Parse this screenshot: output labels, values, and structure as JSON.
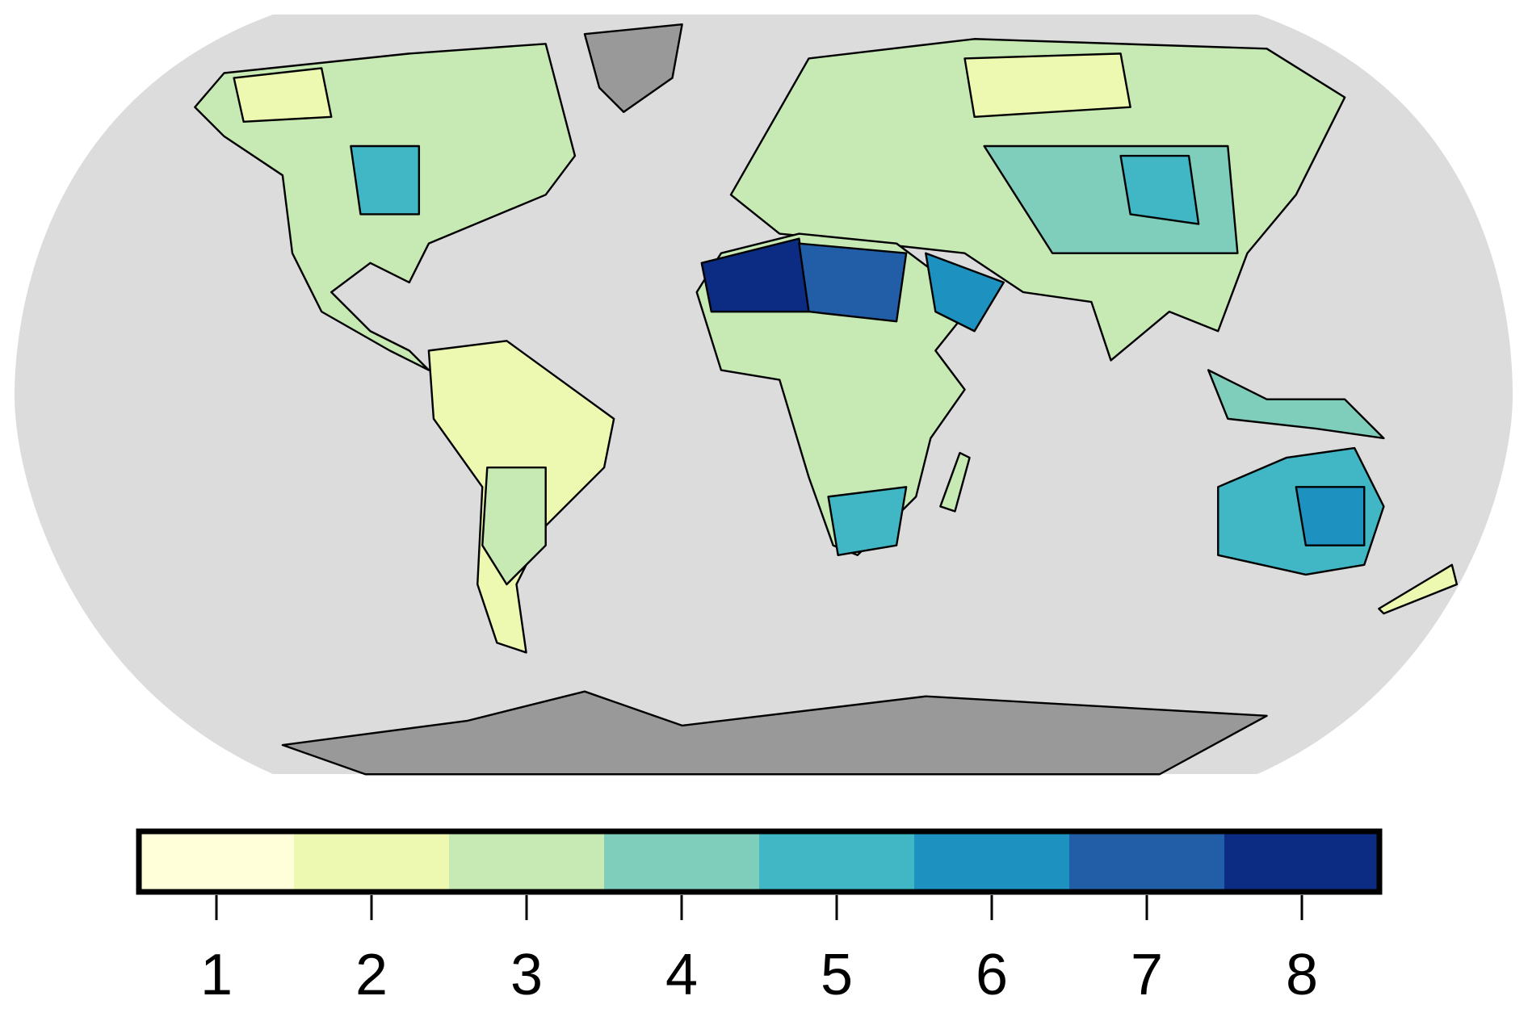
{
  "legend": {
    "colors": [
      "#ffffd9",
      "#edf8b1",
      "#c7e9b4",
      "#7fcdbb",
      "#41b6c4",
      "#1d91c0",
      "#225ea8",
      "#0c2c84"
    ],
    "labels": [
      1,
      2,
      3,
      4,
      5,
      6,
      7,
      8
    ]
  }
}
